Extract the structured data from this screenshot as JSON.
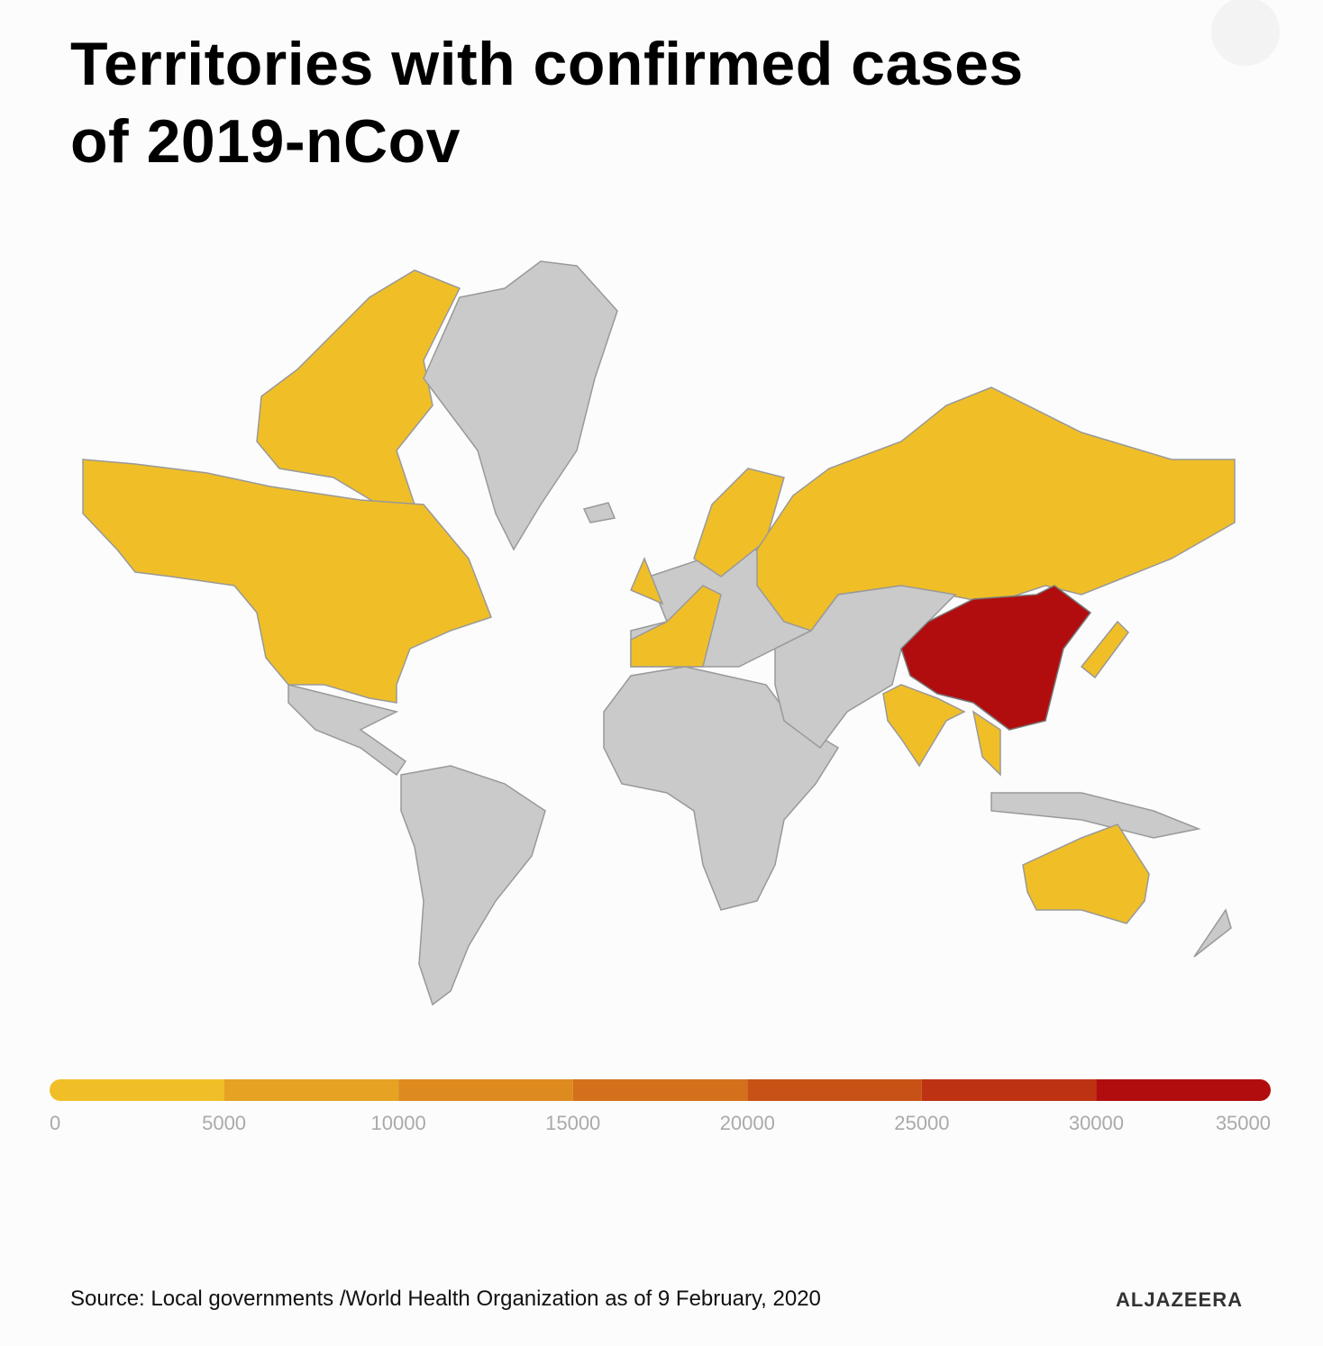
{
  "title": "Territories with confirmed cases of 2019-nCov",
  "legend": {
    "ticks": [
      0,
      5000,
      10000,
      15000,
      20000,
      25000,
      30000,
      35000
    ],
    "colors": [
      "#f0bf27",
      "#e6a323",
      "#dd8a1f",
      "#d4701b",
      "#c85216",
      "#bd3212",
      "#b20d0e"
    ]
  },
  "source": "Source: Local governments /World Health Organization as of 9 February, 2020",
  "logo": "ALJAZEERA"
}
